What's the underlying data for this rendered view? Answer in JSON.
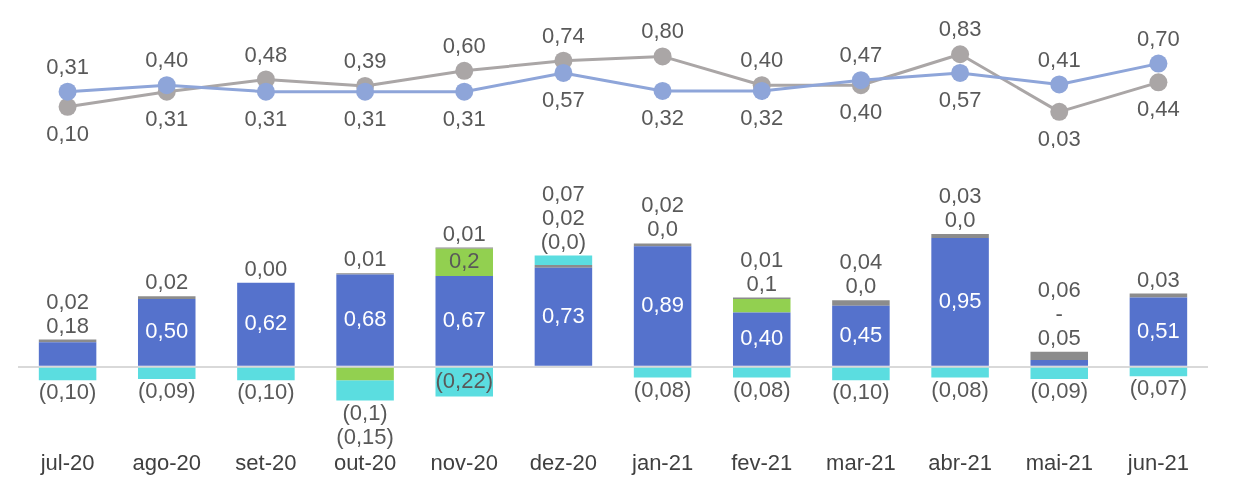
{
  "chart_data": [
    {
      "type": "line",
      "tick_labels": false,
      "marker": "circle",
      "line_style": "solid",
      "categories": [
        null,
        null,
        null,
        null,
        null,
        null,
        null,
        null,
        null,
        null,
        null,
        null
      ],
      "series": [
        {
          "color": "#8ea5d9",
          "values": [
            0.31,
            0.4,
            0.31,
            0.31,
            0.31,
            0.57,
            0.32,
            0.32,
            0.47,
            0.57,
            0.41,
            0.7
          ],
          "value_labels": [
            "0,31",
            "0,40",
            "0,31",
            "0,31",
            "0,31",
            "0,57",
            "0,32",
            "0,32",
            "0,47",
            "0,57",
            "0,41",
            "0,70"
          ]
        },
        {
          "color": "#aaa6a6",
          "values": [
            0.1,
            0.31,
            0.48,
            0.39,
            0.6,
            0.74,
            0.8,
            0.4,
            0.4,
            0.83,
            0.03,
            0.44
          ],
          "value_labels": [
            "0,10",
            "0,31",
            "0,48",
            "0,39",
            "0,60",
            "0,74",
            "0,80",
            "0,40",
            "0,40",
            "0,83",
            "0,03",
            "0,44"
          ]
        }
      ]
    },
    {
      "type": "bar",
      "stacked": true,
      "tick_labels": "x",
      "categories": [
        "jul-20",
        "ago-20",
        "set-20",
        "out-20",
        "nov-20",
        "dez-20",
        "jan-21",
        "fev-21",
        "mar-21",
        "abr-21",
        "mai-21",
        "jun-21"
      ],
      "series": [
        {
          "color": "#5572cc",
          "values": [
            0.18,
            0.5,
            0.62,
            0.68,
            0.67,
            0.73,
            0.89,
            0.4,
            0.45,
            0.95,
            0.05,
            0.51
          ],
          "value_labels": [
            "0,18",
            "0,50",
            "0,62",
            "0,68",
            "0,67",
            "0,73",
            "0,89",
            "0,40",
            "0,45",
            "0,95",
            "0,05",
            "0,51"
          ]
        },
        {
          "color": "#92d050",
          "values": [
            null,
            null,
            null,
            -0.1,
            0.2,
            0,
            0,
            0.1,
            0,
            0,
            0,
            null
          ],
          "value_labels": [
            null,
            null,
            null,
            "(0,1)",
            "0,2",
            "(0,0)",
            "0,0",
            "0,1",
            "0,0",
            "0,0",
            "-",
            null
          ]
        },
        {
          "color": "#8c8c8c",
          "values": [
            0.02,
            0.02,
            0,
            0.01,
            0.01,
            0.02,
            0.02,
            0.01,
            0.04,
            0.03,
            0.06,
            0.03
          ],
          "value_labels": [
            "0,02",
            "0,02",
            "0,00",
            "0,01",
            "0,01",
            "0,02",
            "0,02",
            "0,01",
            "0,04",
            "0,03",
            "0,06",
            "0,03"
          ]
        },
        {
          "color": "#5bdde0",
          "values": [
            -0.1,
            -0.09,
            -0.1,
            -0.15,
            -0.22,
            0.07,
            -0.08,
            -0.08,
            -0.1,
            -0.08,
            -0.09,
            -0.07
          ],
          "value_labels": [
            "(0,10)",
            "(0,09)",
            "(0,10)",
            "(0,15)",
            "(0,22)",
            "0,07",
            "(0,08)",
            "(0,08)",
            "(0,10)",
            "(0,08)",
            "(0,09)",
            "(0,07)"
          ]
        }
      ]
    }
  ]
}
